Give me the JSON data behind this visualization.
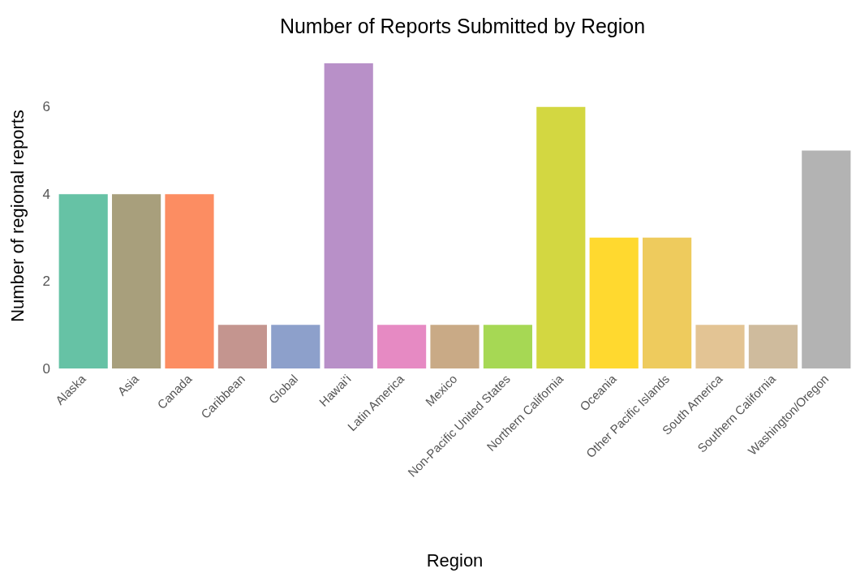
{
  "chart_data": {
    "type": "bar",
    "title": "Number of Reports Submitted by Region",
    "xlabel": "Region",
    "ylabel": "Number of regional reports",
    "categories": [
      "Alaska",
      "Asia",
      "Canada",
      "Caribbean",
      "Global",
      "Hawai'i",
      "Latin America",
      "Mexico",
      "Non-Pacific United States",
      "Northern California",
      "Oceania",
      "Other Pacific Islands",
      "South America",
      "Southern California",
      "Washington/Oregon"
    ],
    "values": [
      4,
      4,
      4,
      1,
      1,
      7,
      1,
      1,
      1,
      6,
      3,
      3,
      1,
      1,
      5
    ],
    "colors": [
      "#66c2a5",
      "#a89f7c",
      "#fc8d62",
      "#c4958f",
      "#8da0cb",
      "#b890c8",
      "#e68ac3",
      "#c9aa86",
      "#a6d854",
      "#d3d741",
      "#ffd92f",
      "#eecb5d",
      "#e3c494",
      "#cfbb9d",
      "#b3b3b3"
    ],
    "ylim": [
      0,
      7
    ],
    "yticks": [
      0,
      2,
      4,
      6
    ],
    "grid": false
  }
}
